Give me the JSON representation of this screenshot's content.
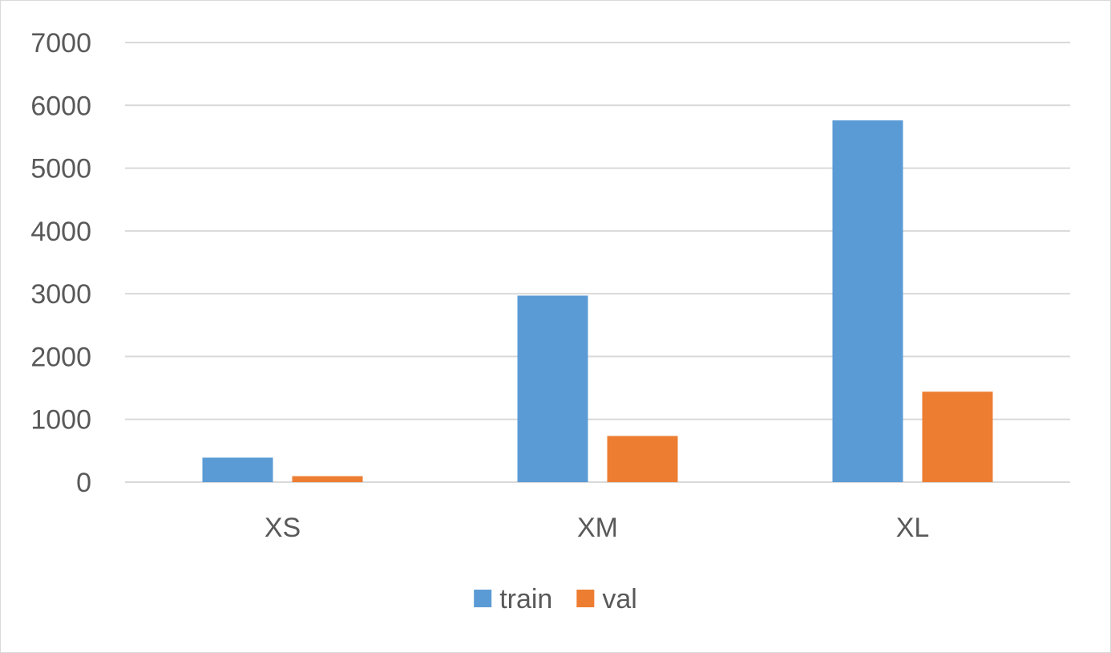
{
  "chart_data": {
    "type": "bar",
    "categories": [
      "XS",
      "XM",
      "XL"
    ],
    "series": [
      {
        "name": "train",
        "values": [
          390,
          2970,
          5760
        ],
        "color": "#5b9bd5"
      },
      {
        "name": "val",
        "values": [
          95,
          735,
          1440
        ],
        "color": "#ed7d31"
      }
    ],
    "title": "",
    "xlabel": "",
    "ylabel": "",
    "ylim": [
      0,
      7000
    ],
    "yticks": [
      0,
      1000,
      2000,
      3000,
      4000,
      5000,
      6000,
      7000
    ],
    "grid": true,
    "legend": "bottom-center"
  }
}
